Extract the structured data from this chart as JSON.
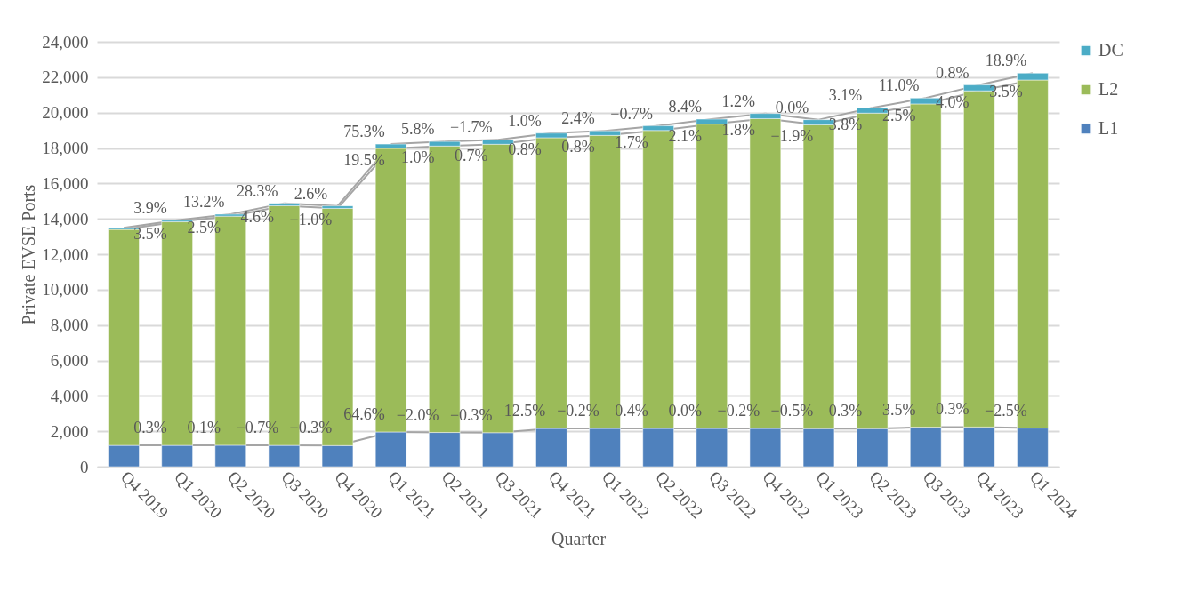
{
  "chart_data": {
    "type": "bar",
    "stacked": true,
    "xlabel": "Quarter",
    "ylabel": "Private EVSE Ports",
    "ylim": [
      0,
      24000
    ],
    "yticks": [
      0,
      {
        "value": 2000,
        "label": "2,000"
      },
      {
        "value": 4000,
        "label": "4,000"
      },
      {
        "value": 6000,
        "label": "6,000"
      },
      {
        "value": 8000,
        "label": "8,000"
      },
      {
        "value": 10000,
        "label": "10,000"
      },
      {
        "value": 12000,
        "label": "12,000"
      },
      {
        "value": 14000,
        "label": "14,000"
      },
      {
        "value": 16000,
        "label": "16,000"
      },
      {
        "value": 18000,
        "label": "18,000"
      },
      {
        "value": 20000,
        "label": "20,000"
      },
      {
        "value": 22000,
        "label": "22,000"
      },
      {
        "value": 24000,
        "label": "24,000"
      }
    ],
    "grid": "y",
    "legend": "right",
    "categories": [
      "Q4 2019",
      "Q1 2020",
      "Q2 2020",
      "Q3 2020",
      "Q4 2020",
      "Q1 2021",
      "Q2 2021",
      "Q3 2021",
      "Q4 2021",
      "Q1 2022",
      "Q2 2022",
      "Q3 2022",
      "Q4 2022",
      "Q1 2023",
      "Q2 2023",
      "Q3 2023",
      "Q4 2023",
      "Q1 2024"
    ],
    "series": [
      {
        "name": "L1",
        "color": "#4f81bd",
        "values": [
          1200,
          1200,
          1210,
          1200,
          1190,
          1960,
          1930,
          1920,
          2160,
          2160,
          2160,
          2160,
          2160,
          2150,
          2150,
          2230,
          2240,
          2180
        ]
      },
      {
        "name": "L2",
        "color": "#9bbb59",
        "values": [
          12200,
          12630,
          12940,
          13540,
          13400,
          16020,
          16180,
          16290,
          16420,
          16550,
          16830,
          17190,
          17500,
          17160,
          17820,
          18260,
          18990,
          19660
        ]
      },
      {
        "name": "DC",
        "color": "#4bacc6",
        "values": [
          90,
          90,
          110,
          140,
          140,
          240,
          260,
          250,
          260,
          260,
          260,
          280,
          290,
          290,
          300,
          330,
          330,
          390
        ]
      }
    ],
    "annotations": [
      {
        "text": "0.3%",
        "x": "Q1 2020",
        "y": 1200
      },
      {
        "text": "0.1%",
        "x": "Q2 2020",
        "y": 1210
      },
      {
        "text": "−0.7%",
        "x": "Q3 2020",
        "y": 1200
      },
      {
        "text": "−0.3%",
        "x": "Q4 2020",
        "y": 1190
      },
      {
        "text": "64.6%",
        "x": "Q1 2021",
        "y": 1960
      },
      {
        "text": "−2.0%",
        "x": "Q2 2021",
        "y": 1930
      },
      {
        "text": "−0.3%",
        "x": "Q3 2021",
        "y": 1920
      },
      {
        "text": "12.5%",
        "x": "Q4 2021",
        "y": 2160
      },
      {
        "text": "−0.2%",
        "x": "Q1 2022",
        "y": 2160
      },
      {
        "text": "0.4%",
        "x": "Q2 2022",
        "y": 2160
      },
      {
        "text": "0.0%",
        "x": "Q3 2022",
        "y": 2160
      },
      {
        "text": "−0.2%",
        "x": "Q4 2022",
        "y": 2160
      },
      {
        "text": "−0.5%",
        "x": "Q1 2023",
        "y": 2150
      },
      {
        "text": "0.3%",
        "x": "Q2 2023",
        "y": 2150
      },
      {
        "text": "3.5%",
        "x": "Q3 2023",
        "y": 2230
      },
      {
        "text": "0.3%",
        "x": "Q4 2023",
        "y": 2240
      },
      {
        "text": "−2.5%",
        "x": "Q1 2024",
        "y": 2180
      },
      {
        "text": "3.5%",
        "x": "Q1 2020",
        "y": 13830
      },
      {
        "text": "2.5%",
        "x": "Q2 2020",
        "y": 14150
      },
      {
        "text": "4.6%",
        "x": "Q3 2020",
        "y": 14740
      },
      {
        "text": "−1.0%",
        "x": "Q4 2020",
        "y": 14590
      },
      {
        "text": "19.5%",
        "x": "Q1 2021",
        "y": 17980
      },
      {
        "text": "1.0%",
        "x": "Q2 2021",
        "y": 18110
      },
      {
        "text": "0.7%",
        "x": "Q3 2021",
        "y": 18210
      },
      {
        "text": "0.8%",
        "x": "Q4 2021",
        "y": 18580
      },
      {
        "text": "0.8%",
        "x": "Q1 2022",
        "y": 18710
      },
      {
        "text": "1.7%",
        "x": "Q2 2022",
        "y": 18990
      },
      {
        "text": "2.1%",
        "x": "Q3 2022",
        "y": 19350
      },
      {
        "text": "1.8%",
        "x": "Q4 2022",
        "y": 19660
      },
      {
        "text": "−1.9%",
        "x": "Q1 2023",
        "y": 19310
      },
      {
        "text": "3.8%",
        "x": "Q2 2023",
        "y": 19970
      },
      {
        "text": "2.5%",
        "x": "Q3 2023",
        "y": 20490
      },
      {
        "text": "4.0%",
        "x": "Q4 2023",
        "y": 21230
      },
      {
        "text": "3.5%",
        "x": "Q1 2024",
        "y": 21840
      },
      {
        "text": "3.9%",
        "x": "Q1 2020",
        "y": 13920
      },
      {
        "text": "13.2%",
        "x": "Q2 2020",
        "y": 14260
      },
      {
        "text": "28.3%",
        "x": "Q3 2020",
        "y": 14880
      },
      {
        "text": "2.6%",
        "x": "Q4 2020",
        "y": 14730
      },
      {
        "text": "75.3%",
        "x": "Q1 2021",
        "y": 18220
      },
      {
        "text": "5.8%",
        "x": "Q2 2021",
        "y": 18370
      },
      {
        "text": "−1.7%",
        "x": "Q3 2021",
        "y": 18460
      },
      {
        "text": "1.0%",
        "x": "Q4 2021",
        "y": 18840
      },
      {
        "text": "2.4%",
        "x": "Q1 2022",
        "y": 18970
      },
      {
        "text": "−0.7%",
        "x": "Q2 2022",
        "y": 19250
      },
      {
        "text": "8.4%",
        "x": "Q3 2022",
        "y": 19630
      },
      {
        "text": "1.2%",
        "x": "Q4 2022",
        "y": 19950
      },
      {
        "text": "0.0%",
        "x": "Q1 2023",
        "y": 19600
      },
      {
        "text": "3.1%",
        "x": "Q2 2023",
        "y": 20270
      },
      {
        "text": "11.0%",
        "x": "Q3 2023",
        "y": 20820
      },
      {
        "text": "0.8%",
        "x": "Q4 2023",
        "y": 21560
      },
      {
        "text": "18.9%",
        "x": "Q1 2024",
        "y": 22230
      }
    ]
  }
}
